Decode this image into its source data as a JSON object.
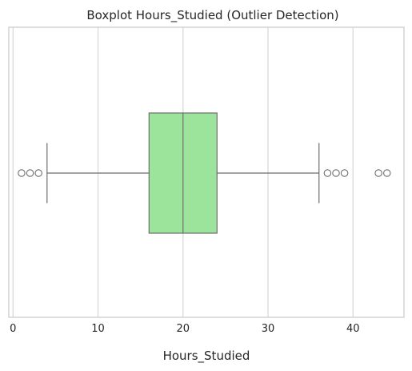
{
  "chart_data": {
    "type": "boxplot",
    "title": "Boxplot Hours_Studied (Outlier Detection)",
    "xlabel": "Hours_Studied",
    "ylabel": "",
    "orientation": "horizontal",
    "xlim": [
      -0.5,
      46
    ],
    "xticks": [
      0,
      10,
      20,
      30,
      40
    ],
    "grid": "vertical",
    "box": {
      "whisker_low": 4,
      "q1": 16,
      "median": 20,
      "q3": 24,
      "whisker_high": 36
    },
    "outliers": [
      1,
      2,
      3,
      37,
      38,
      39,
      43,
      44
    ],
    "colors": {
      "box_fill": "#9ce39c",
      "line": "#6e6e6e",
      "grid": "#d9d9d9",
      "frame": "#cccccc"
    }
  }
}
